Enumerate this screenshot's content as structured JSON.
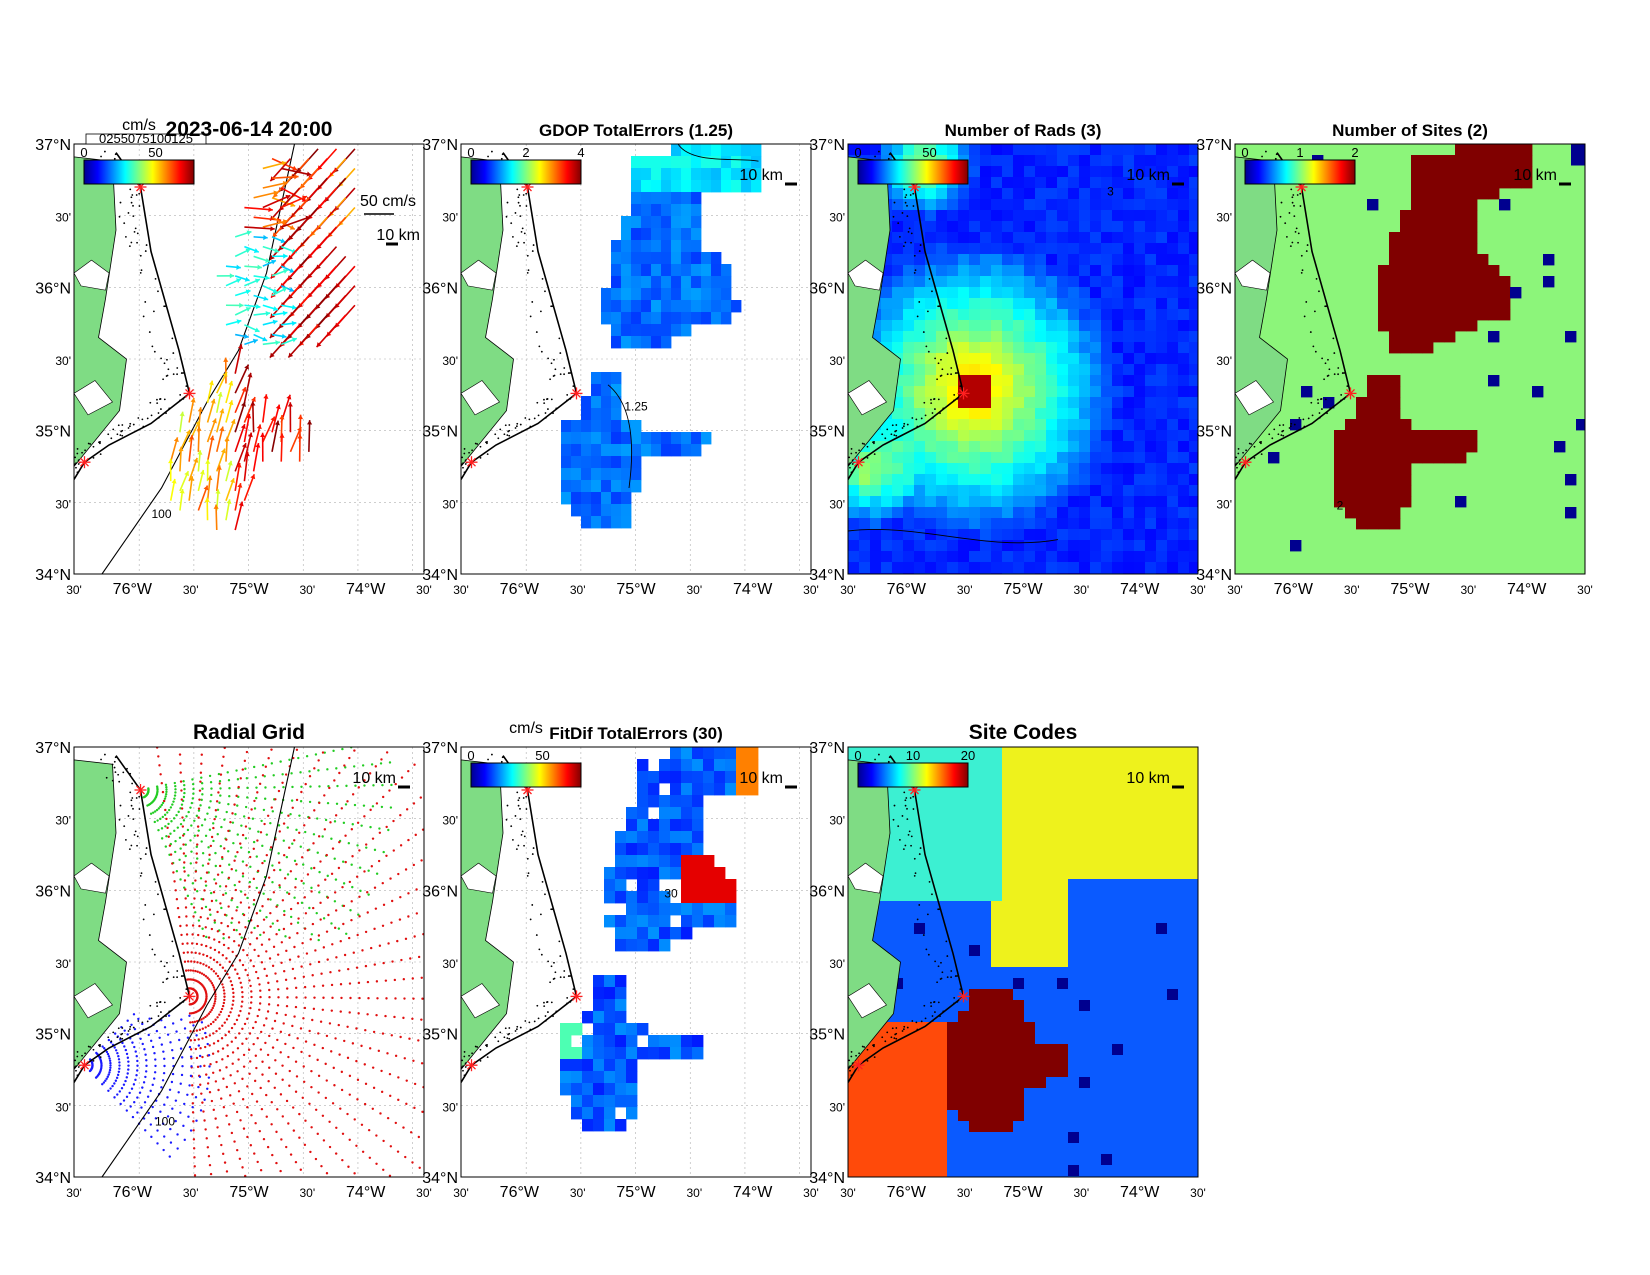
{
  "colors": {
    "land": "#7fdc84",
    "sea_background": "#ffffff",
    "panel_fill_background": "#8cf57a",
    "site_marker": "#ff2020",
    "radial_site1": "#22cc22",
    "radial_site2": "#e01010",
    "radial_site3": "#1a1aff",
    "site_code_a": "#3cf0d2",
    "site_code_b": "#eef21c",
    "site_code_c": "#0a5aff",
    "site_code_d": "#ff4a0a",
    "site_code_e": "#800000",
    "site_code_f": "#00008f"
  },
  "axes": {
    "lat_labels": [
      "37°N",
      "30'",
      "36°N",
      "30'",
      "35°N",
      "30'",
      "34°N"
    ],
    "lon_labels": [
      "30'",
      "76°W",
      "30'",
      "75°W",
      "30'",
      "74°W",
      "30'"
    ]
  },
  "panels": [
    {
      "id": "vectors",
      "title": "2023-06-14 20:00",
      "scale_text": "10 km",
      "colorbar_unit": "cm/s",
      "colorbar_ticks": [
        "0",
        "50"
      ],
      "colorbar_overlap_text": "0255075100125",
      "vector_scale_label": "50 cm/s",
      "contour_label": "100"
    },
    {
      "id": "gdop",
      "title": "GDOP TotalErrors (1.25)",
      "scale_text": "10 km",
      "colorbar_ticks": [
        "0",
        "2",
        "4"
      ],
      "contour_label": "1.25"
    },
    {
      "id": "rads",
      "title": "Number of Rads (3)",
      "scale_text": "10 km",
      "colorbar_ticks": [
        "0",
        "50"
      ],
      "contour_label": "3"
    },
    {
      "id": "sites",
      "title": "Number of Sites (2)",
      "scale_text": "10 km",
      "colorbar_ticks": [
        "0",
        "1",
        "2"
      ],
      "contour_label": "2"
    },
    {
      "id": "radial",
      "title": "Radial Grid",
      "scale_text": "10 km",
      "contour_label": "100"
    },
    {
      "id": "fitdif",
      "title": "FitDif TotalErrors (30)",
      "scale_text": "10 km",
      "colorbar_unit": "cm/s",
      "colorbar_ticks": [
        "0",
        "50"
      ],
      "contour_label": "30"
    },
    {
      "id": "sitecodes",
      "title": "Site Codes",
      "scale_text": "10 km",
      "colorbar_ticks": [
        "0",
        "10",
        "20"
      ]
    }
  ]
}
